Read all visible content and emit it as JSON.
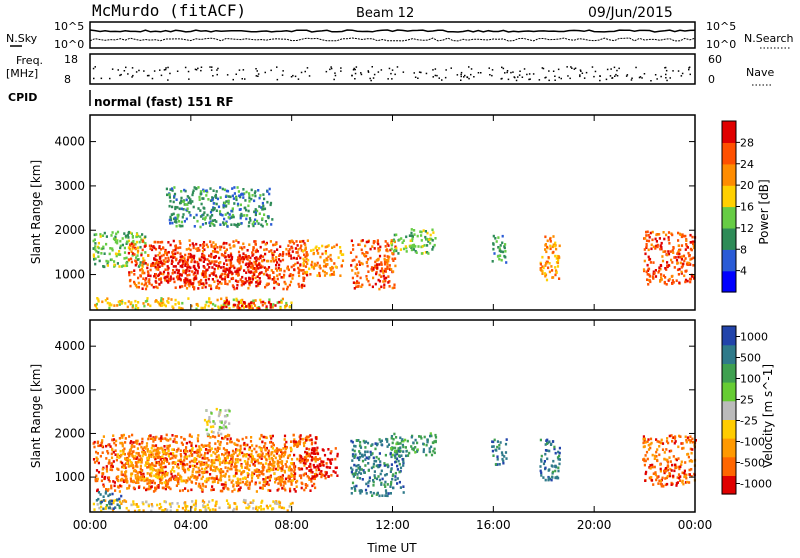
{
  "header": {
    "station": "McMurdo (fitACF)",
    "beam": "Beam 12",
    "date": "09/Jun/2015"
  },
  "noise_panel": {
    "left_label": "N.Sky",
    "right_label": "N.Search",
    "left_top": "10^5",
    "left_bottom": "10^0",
    "right_top": "10^5",
    "right_bottom": "10^0"
  },
  "freq_panel": {
    "left_label_top": "Freq.",
    "left_label_unit": "[MHz]",
    "left_top": "18",
    "left_bottom": "8",
    "right_label": "Nave",
    "right_top": "60",
    "right_bottom": "0"
  },
  "cpid": {
    "label": "CPID",
    "text": "normal (fast) 151 RF"
  },
  "colors": {
    "power_scale": [
      "#0000ff",
      "#2a5bd6",
      "#2e8b57",
      "#66cc44",
      "#ffd000",
      "#ff8c00",
      "#ff5000",
      "#e00000"
    ],
    "velocity_scale": [
      "#2244aa",
      "#2f7a8a",
      "#3fa050",
      "#66cc33",
      "#bbbbbb",
      "#ffcc00",
      "#ff9900",
      "#ff6600",
      "#e00000"
    ]
  },
  "chart_data": [
    {
      "type": "heatmap",
      "name_id": "power",
      "ylabel": "Slant Range [km]",
      "y_ticks": [
        "1000",
        "2000",
        "3000",
        "4000"
      ],
      "ylim": [
        200,
        4600
      ],
      "x_ticks": [
        "00:00",
        "04:00",
        "08:00",
        "12:00",
        "16:00",
        "20:00",
        "00:00"
      ],
      "colorbar_label": "Power [dB]",
      "colorbar_ticks": [
        "4",
        "8",
        "12",
        "16",
        "20",
        "24",
        "28"
      ],
      "regions": [
        {
          "t0": 0.1,
          "t1": 2.2,
          "r0": 1200,
          "r1": 2000,
          "level": 3
        },
        {
          "t0": 1.5,
          "t1": 8.6,
          "r0": 700,
          "r1": 1800,
          "level": 6
        },
        {
          "t0": 2.5,
          "t1": 6.8,
          "r0": 800,
          "r1": 1500,
          "level": 7
        },
        {
          "t0": 8.4,
          "t1": 10.0,
          "r0": 1000,
          "r1": 1700,
          "level": 5
        },
        {
          "t0": 10.3,
          "t1": 12.1,
          "r0": 700,
          "r1": 1800,
          "level": 6
        },
        {
          "t0": 11.9,
          "t1": 13.7,
          "r0": 1500,
          "r1": 2050,
          "level": 3
        },
        {
          "t0": 15.9,
          "t1": 16.5,
          "r0": 1300,
          "r1": 1900,
          "level": 2
        },
        {
          "t0": 17.8,
          "t1": 18.6,
          "r0": 900,
          "r1": 1900,
          "level": 5
        },
        {
          "t0": 21.9,
          "t1": 24.0,
          "r0": 800,
          "r1": 2000,
          "level": 6
        },
        {
          "t0": 0.1,
          "t1": 8.0,
          "r0": 250,
          "r1": 500,
          "level": 4
        },
        {
          "t0": 5.0,
          "t1": 7.5,
          "r0": 250,
          "r1": 450,
          "level": 7
        },
        {
          "t0": 3.0,
          "t1": 7.2,
          "r0": 2100,
          "r1": 3000,
          "level": 2
        }
      ]
    },
    {
      "type": "heatmap",
      "name_id": "velocity",
      "ylabel": "Slant Range [km]",
      "y_ticks": [
        "1000",
        "2000",
        "3000",
        "4000"
      ],
      "ylim": [
        200,
        4600
      ],
      "x_ticks": [
        "00:00",
        "04:00",
        "08:00",
        "12:00",
        "16:00",
        "20:00",
        "00:00"
      ],
      "xlabel": "Time UT",
      "colorbar_label": "Velocity [m s^-1]",
      "colorbar_ticks": [
        "1000",
        "500",
        "100",
        "25",
        "-25",
        "-100",
        "-500",
        "-1000"
      ],
      "regions": [
        {
          "t0": 0.1,
          "t1": 9.0,
          "r0": 700,
          "r1": 2000,
          "level": 1
        },
        {
          "t0": 1.0,
          "t1": 8.0,
          "r0": 900,
          "r1": 1700,
          "level": 2
        },
        {
          "t0": 8.3,
          "t1": 9.8,
          "r0": 1000,
          "r1": 1700,
          "level": 0
        },
        {
          "t0": 10.3,
          "t1": 12.4,
          "r0": 600,
          "r1": 1900,
          "level": 7
        },
        {
          "t0": 11.9,
          "t1": 13.7,
          "r0": 1500,
          "r1": 2050,
          "level": 6
        },
        {
          "t0": 15.9,
          "t1": 16.5,
          "r0": 1300,
          "r1": 1900,
          "level": 7
        },
        {
          "t0": 17.8,
          "t1": 18.6,
          "r0": 900,
          "r1": 1900,
          "level": 7
        },
        {
          "t0": 21.9,
          "t1": 24.0,
          "r0": 800,
          "r1": 2000,
          "level": 1
        },
        {
          "t0": 0.1,
          "t1": 8.0,
          "r0": 250,
          "r1": 500,
          "level": 3
        },
        {
          "t0": 4.5,
          "t1": 5.5,
          "r0": 2000,
          "r1": 2600,
          "level": 4
        },
        {
          "t0": 0.2,
          "t1": 1.2,
          "r0": 300,
          "r1": 700,
          "level": 7
        }
      ]
    }
  ]
}
